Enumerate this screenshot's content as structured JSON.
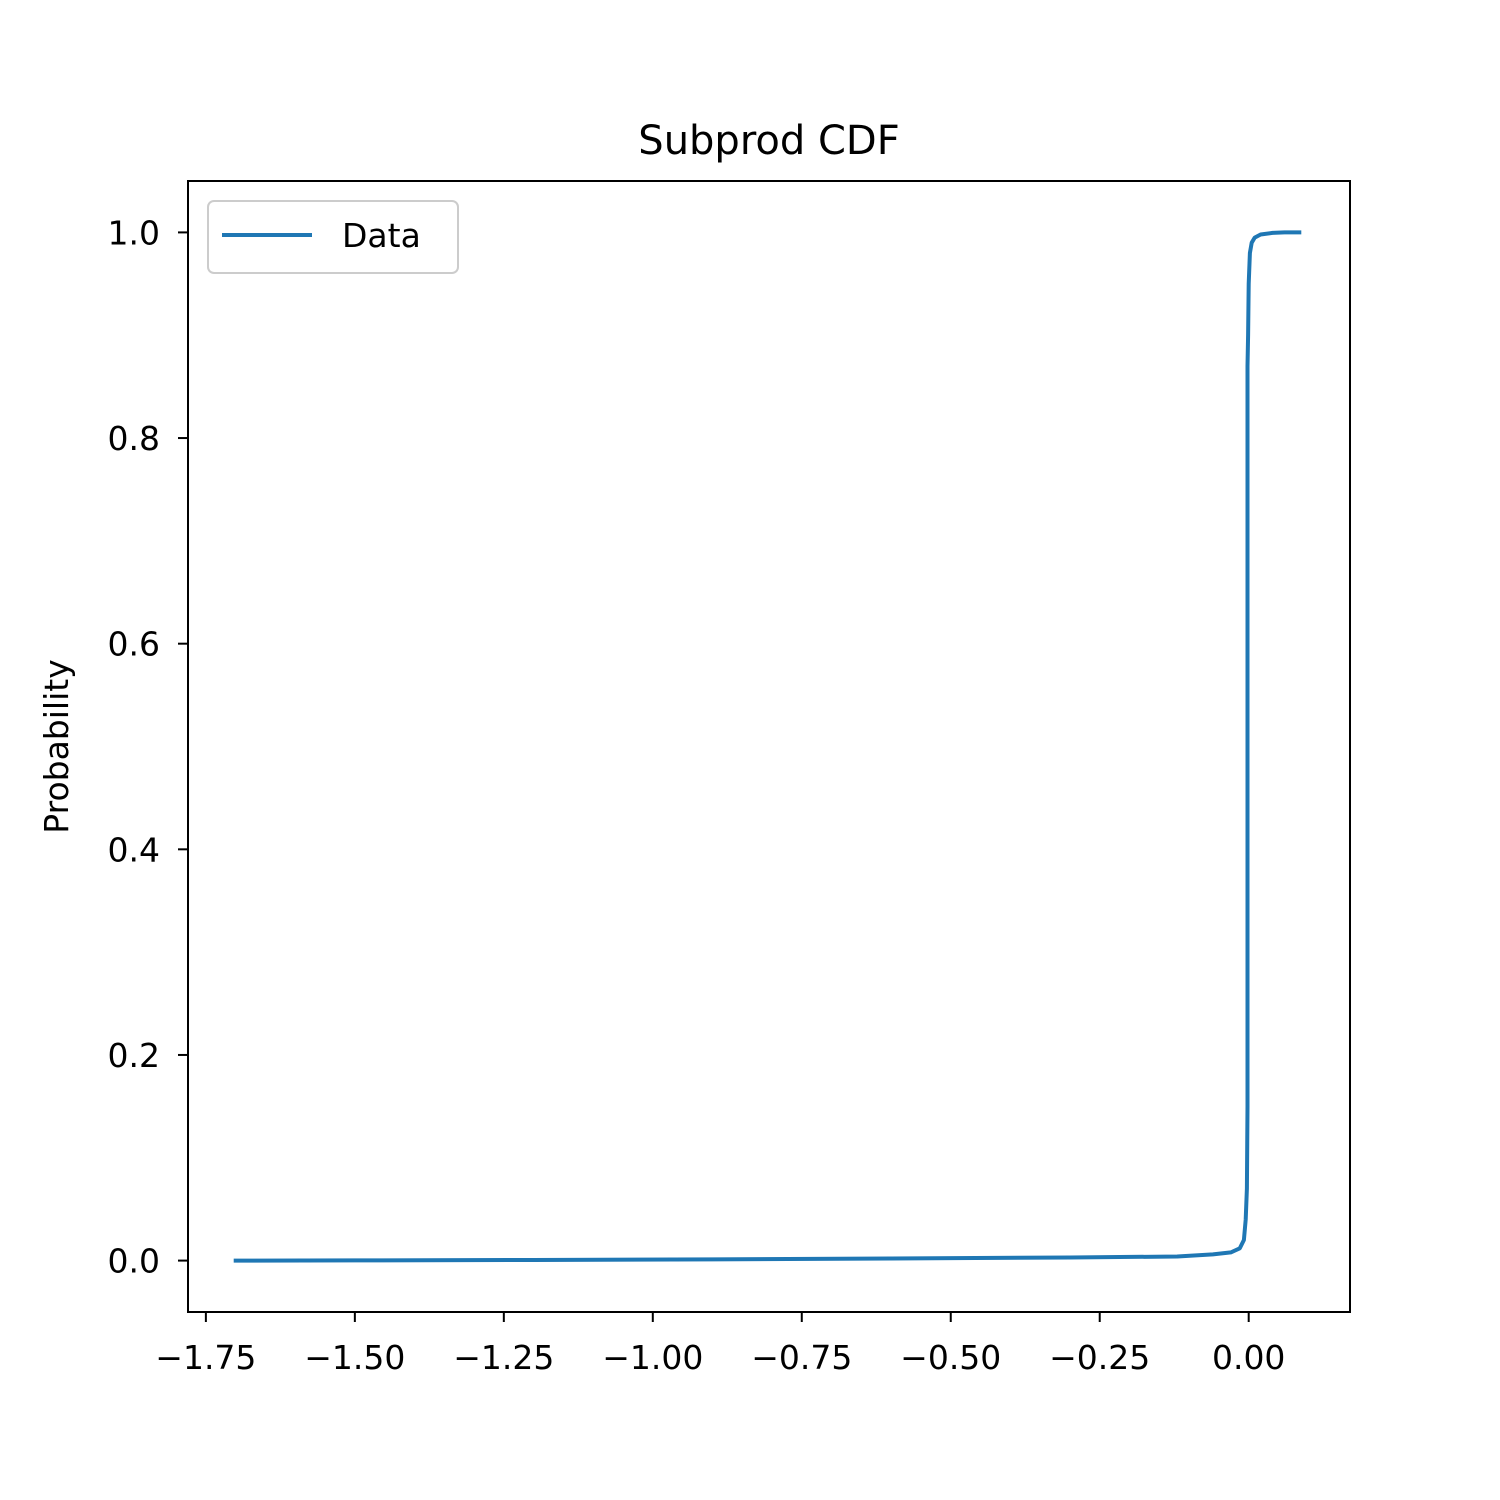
{
  "chart_data": {
    "type": "line",
    "title": "Subprod CDF",
    "xlabel": "",
    "ylabel": "Probability",
    "xlim": [
      -1.78,
      0.17
    ],
    "ylim": [
      -0.05,
      1.05
    ],
    "x_ticks": [
      -1.75,
      -1.5,
      -1.25,
      -1.0,
      -0.75,
      -0.5,
      -0.25,
      0.0
    ],
    "x_tick_labels": [
      "−1.75",
      "−1.50",
      "−1.25",
      "−1.00",
      "−0.75",
      "−0.50",
      "−0.25",
      "0.00"
    ],
    "y_ticks": [
      0.0,
      0.2,
      0.4,
      0.6,
      0.8,
      1.0
    ],
    "y_tick_labels": [
      "0.0",
      "0.2",
      "0.4",
      "0.6",
      "0.8",
      "1.0"
    ],
    "grid": false,
    "legend": {
      "position": "top-left",
      "entries": [
        "Data"
      ]
    },
    "series": [
      {
        "name": "Data",
        "color": "#1f77b4",
        "x": [
          -1.7,
          -1.5,
          -1.2,
          -0.9,
          -0.6,
          -0.3,
          -0.12,
          -0.06,
          -0.03,
          -0.015,
          -0.008,
          -0.005,
          -0.003,
          -0.002,
          -0.002,
          -0.002,
          -0.002,
          -0.001,
          0.0,
          0.002,
          0.005,
          0.01,
          0.02,
          0.04,
          0.06,
          0.085
        ],
        "y": [
          0.0,
          0.0002,
          0.0006,
          0.0012,
          0.002,
          0.003,
          0.004,
          0.006,
          0.008,
          0.012,
          0.02,
          0.04,
          0.07,
          0.15,
          0.5,
          0.8,
          0.87,
          0.9,
          0.95,
          0.98,
          0.99,
          0.995,
          0.998,
          0.9995,
          1.0,
          1.0
        ]
      }
    ]
  }
}
